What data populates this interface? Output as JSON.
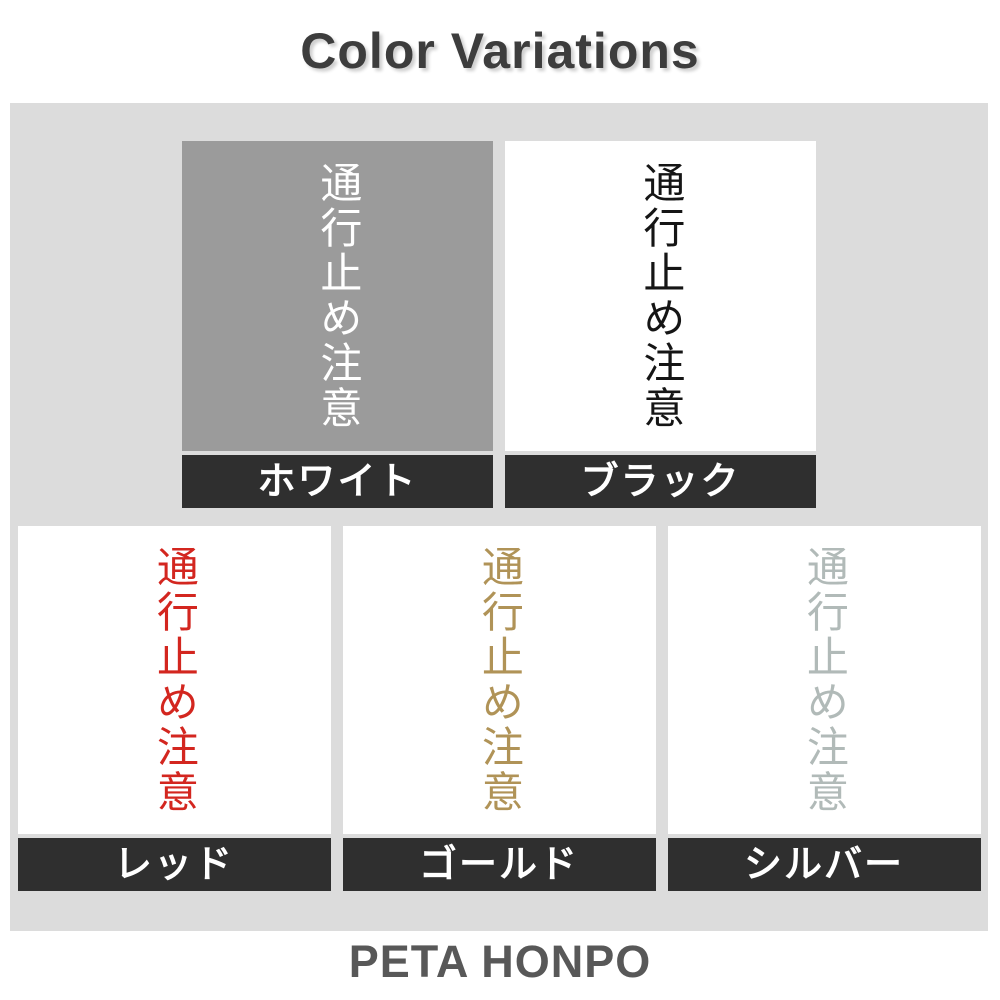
{
  "title": "Color Variations",
  "footer": "PETA HONPO",
  "sample_text": "通行止め注意",
  "colors": {
    "page_bg": "#ffffff",
    "panel_bg": "#dcdcdc",
    "label_bar_bg": "#2f2f2f",
    "label_text": "#ffffff",
    "title_text": "#3d3d3d",
    "footer_text": "#585858"
  },
  "variations": [
    {
      "label": "ホワイト",
      "text_color": "#ffffff",
      "swatch_bg": "#9b9b9b"
    },
    {
      "label": "ブラック",
      "text_color": "#151515",
      "swatch_bg": "#ffffff"
    },
    {
      "label": "レッド",
      "text_color": "#d3261f",
      "swatch_bg": "#ffffff"
    },
    {
      "label": "ゴールド",
      "text_color": "#b09357",
      "swatch_bg": "#ffffff"
    },
    {
      "label": "シルバー",
      "text_color": "#b1bab8",
      "swatch_bg": "#ffffff"
    }
  ]
}
